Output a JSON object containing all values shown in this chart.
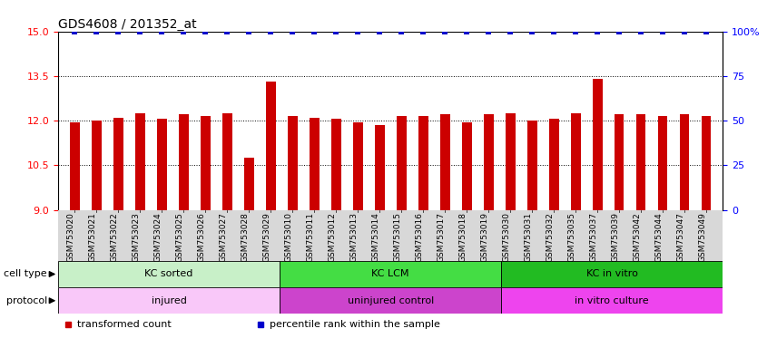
{
  "title": "GDS4608 / 201352_at",
  "samples": [
    "GSM753020",
    "GSM753021",
    "GSM753022",
    "GSM753023",
    "GSM753024",
    "GSM753025",
    "GSM753026",
    "GSM753027",
    "GSM753028",
    "GSM753029",
    "GSM753010",
    "GSM753011",
    "GSM753012",
    "GSM753013",
    "GSM753014",
    "GSM753015",
    "GSM753016",
    "GSM753017",
    "GSM753018",
    "GSM753019",
    "GSM753030",
    "GSM753031",
    "GSM753032",
    "GSM753035",
    "GSM753037",
    "GSM753039",
    "GSM753042",
    "GSM753044",
    "GSM753047",
    "GSM753049"
  ],
  "bar_values": [
    11.95,
    12.0,
    12.1,
    12.25,
    12.05,
    12.2,
    12.15,
    12.25,
    10.75,
    13.3,
    12.15,
    12.1,
    12.05,
    11.95,
    11.85,
    12.15,
    12.15,
    12.2,
    11.95,
    12.2,
    12.25,
    12.0,
    12.05,
    12.25,
    13.4,
    12.2,
    12.2,
    12.15,
    12.2,
    12.15
  ],
  "percentile_values": [
    100,
    100,
    100,
    100,
    100,
    100,
    100,
    100,
    100,
    100,
    100,
    100,
    100,
    100,
    100,
    100,
    100,
    100,
    100,
    100,
    100,
    100,
    100,
    100,
    100,
    100,
    100,
    100,
    100,
    100
  ],
  "bar_color": "#cc0000",
  "dot_color": "#0000cc",
  "ylim_left": [
    9,
    15
  ],
  "ylim_right": [
    0,
    100
  ],
  "yticks_left": [
    9,
    10.5,
    12,
    13.5,
    15
  ],
  "yticks_right": [
    0,
    25,
    50,
    75,
    100
  ],
  "grid_lines": [
    10.5,
    12,
    13.5
  ],
  "xtick_bg_color": "#d8d8d8",
  "cell_type_groups": [
    {
      "label": "KC sorted",
      "start": 0,
      "end": 10,
      "color": "#c8f0c8"
    },
    {
      "label": "KC LCM",
      "start": 10,
      "end": 20,
      "color": "#44dd44"
    },
    {
      "label": "KC in vitro",
      "start": 20,
      "end": 30,
      "color": "#22bb22"
    }
  ],
  "protocol_groups": [
    {
      "label": "injured",
      "start": 0,
      "end": 10,
      "color": "#f9c8f9"
    },
    {
      "label": "uninjured control",
      "start": 10,
      "end": 20,
      "color": "#cc44cc"
    },
    {
      "label": "in vitro culture",
      "start": 20,
      "end": 30,
      "color": "#ee44ee"
    }
  ],
  "legend_items": [
    {
      "label": "transformed count",
      "color": "#cc0000",
      "marker": "s"
    },
    {
      "label": "percentile rank within the sample",
      "color": "#0000cc",
      "marker": "s"
    }
  ],
  "cell_type_label": "cell type",
  "protocol_label": "protocol",
  "bar_width": 0.45
}
